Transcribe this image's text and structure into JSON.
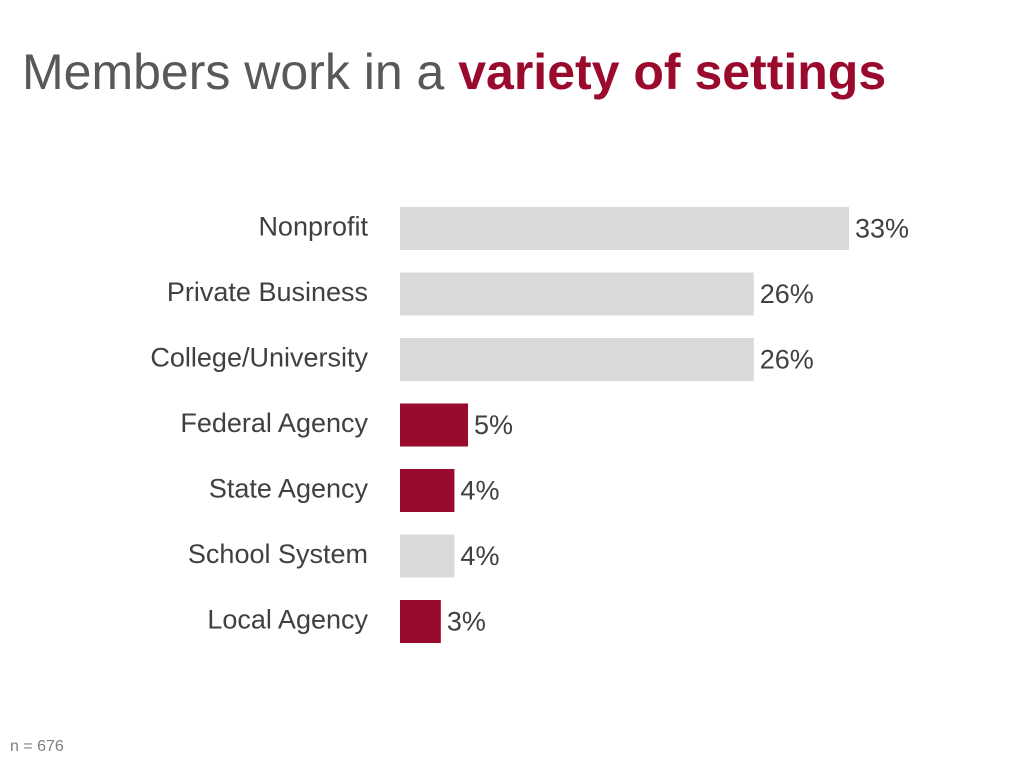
{
  "title": {
    "plain": "Members work in a ",
    "highlight": "variety of settings"
  },
  "colors": {
    "title_text": "#595959",
    "accent": "#990a2c",
    "neutral_bar": "#d9d9d9",
    "label_text": "#404040"
  },
  "chart_data": {
    "type": "bar",
    "orientation": "horizontal",
    "categories": [
      "Nonprofit",
      "Private Business",
      "College/University",
      "Federal Agency",
      "State Agency",
      "School System",
      "Local Agency"
    ],
    "values": [
      33,
      26,
      26,
      5,
      4,
      4,
      3
    ],
    "value_labels": [
      "33%",
      "26%",
      "26%",
      "5%",
      "4%",
      "4%",
      "3%"
    ],
    "highlighted": [
      false,
      false,
      false,
      true,
      true,
      false,
      true
    ],
    "xlim": [
      0,
      33
    ],
    "grid": false,
    "legend": "none"
  },
  "footnote": "n = 676"
}
